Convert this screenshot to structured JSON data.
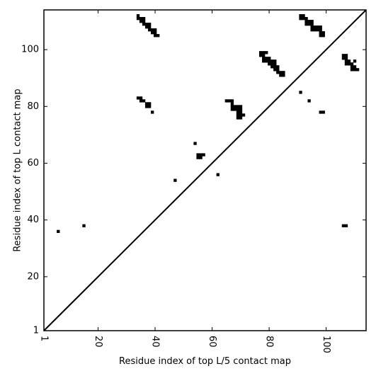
{
  "chart_data": {
    "type": "heatmap",
    "xlabel": "Residue index of top L/5 contact map",
    "ylabel": "Residue index of top L contact map",
    "xlim": [
      1,
      114
    ],
    "ylim": [
      1,
      114
    ],
    "x_ticks": [
      1,
      20,
      40,
      60,
      80,
      100
    ],
    "y_ticks": [
      1,
      20,
      40,
      60,
      80,
      100
    ],
    "x_tick_labels": [
      "1",
      "20",
      "40",
      "60",
      "80",
      "100"
    ],
    "y_tick_labels": [
      "1",
      "20",
      "40",
      "60",
      "80",
      "100"
    ],
    "x_tick_rotation_deg": 90,
    "diagonal": true,
    "grid": false,
    "cell_color": "#000000",
    "contacts": [
      [
        6,
        36
      ],
      [
        15,
        38
      ],
      [
        47,
        54
      ],
      [
        54,
        67
      ],
      [
        55,
        62
      ],
      [
        55,
        63
      ],
      [
        56,
        62
      ],
      [
        56,
        63
      ],
      [
        57,
        63
      ],
      [
        62,
        56
      ],
      [
        34,
        83
      ],
      [
        35,
        82
      ],
      [
        35,
        83
      ],
      [
        36,
        82
      ],
      [
        37,
        80
      ],
      [
        37,
        81
      ],
      [
        38,
        80
      ],
      [
        38,
        81
      ],
      [
        39,
        78
      ],
      [
        34,
        111
      ],
      [
        34,
        112
      ],
      [
        35,
        110
      ],
      [
        35,
        111
      ],
      [
        36,
        110
      ],
      [
        36,
        111
      ],
      [
        36,
        109
      ],
      [
        37,
        108
      ],
      [
        37,
        109
      ],
      [
        38,
        108
      ],
      [
        38,
        109
      ],
      [
        38,
        107
      ],
      [
        39,
        106
      ],
      [
        39,
        107
      ],
      [
        40,
        106
      ],
      [
        40,
        107
      ],
      [
        40,
        105
      ],
      [
        41,
        105
      ],
      [
        65,
        82
      ],
      [
        66,
        82
      ],
      [
        67,
        82
      ],
      [
        67,
        81
      ],
      [
        67,
        80
      ],
      [
        67,
        79
      ],
      [
        68,
        79
      ],
      [
        68,
        80
      ],
      [
        69,
        79
      ],
      [
        69,
        80
      ],
      [
        70,
        79
      ],
      [
        70,
        80
      ],
      [
        69,
        78
      ],
      [
        70,
        78
      ],
      [
        69,
        77
      ],
      [
        70,
        77
      ],
      [
        69,
        76
      ],
      [
        70,
        76
      ],
      [
        71,
        77
      ],
      [
        77,
        98
      ],
      [
        77,
        99
      ],
      [
        78,
        98
      ],
      [
        78,
        99
      ],
      [
        79,
        99
      ],
      [
        78,
        97
      ],
      [
        79,
        97
      ],
      [
        78,
        96
      ],
      [
        79,
        96
      ],
      [
        80,
        97
      ],
      [
        80,
        96
      ],
      [
        80,
        95
      ],
      [
        81,
        96
      ],
      [
        81,
        95
      ],
      [
        82,
        96
      ],
      [
        82,
        95
      ],
      [
        81,
        94
      ],
      [
        82,
        94
      ],
      [
        82,
        93
      ],
      [
        83,
        93
      ],
      [
        83,
        94
      ],
      [
        83,
        92
      ],
      [
        84,
        92
      ],
      [
        84,
        91
      ],
      [
        85,
        91
      ],
      [
        85,
        92
      ],
      [
        91,
        85
      ],
      [
        94,
        82
      ],
      [
        98,
        78
      ],
      [
        99,
        78
      ],
      [
        91,
        112
      ],
      [
        91,
        111
      ],
      [
        92,
        112
      ],
      [
        92,
        111
      ],
      [
        93,
        111
      ],
      [
        93,
        110
      ],
      [
        93,
        109
      ],
      [
        94,
        110
      ],
      [
        94,
        109
      ],
      [
        95,
        110
      ],
      [
        95,
        109
      ],
      [
        95,
        108
      ],
      [
        95,
        107
      ],
      [
        96,
        108
      ],
      [
        96,
        107
      ],
      [
        97,
        108
      ],
      [
        97,
        107
      ],
      [
        98,
        108
      ],
      [
        98,
        107
      ],
      [
        98,
        106
      ],
      [
        99,
        106
      ],
      [
        99,
        105
      ],
      [
        98,
        105
      ],
      [
        106,
        97
      ],
      [
        106,
        98
      ],
      [
        107,
        97
      ],
      [
        107,
        98
      ],
      [
        107,
        96
      ],
      [
        107,
        95
      ],
      [
        108,
        96
      ],
      [
        108,
        95
      ],
      [
        109,
        95
      ],
      [
        109,
        94
      ],
      [
        109,
        93
      ],
      [
        110,
        94
      ],
      [
        110,
        93
      ],
      [
        111,
        93
      ],
      [
        110,
        96
      ],
      [
        106,
        38
      ],
      [
        107,
        38
      ]
    ]
  }
}
